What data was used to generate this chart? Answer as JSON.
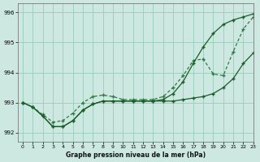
{
  "title": "Graphe pression niveau de la mer (hPa)",
  "xlim": [
    -0.5,
    23
  ],
  "ylim": [
    991.7,
    996.3
  ],
  "yticks": [
    992,
    993,
    994,
    995,
    996
  ],
  "xticks": [
    0,
    1,
    2,
    3,
    4,
    5,
    6,
    7,
    8,
    9,
    10,
    11,
    12,
    13,
    14,
    15,
    16,
    17,
    18,
    19,
    20,
    21,
    22,
    23
  ],
  "background_color": "#cce8e0",
  "grid_color": "#99ccbb",
  "line_color_solid": "#1a5c2a",
  "line_color_dot": "#2d7a44",
  "line1_x": [
    0,
    1,
    2,
    3,
    4,
    5,
    6,
    7,
    8,
    9,
    10,
    11,
    12,
    13,
    14,
    15,
    16,
    17,
    18,
    19,
    20,
    21,
    22,
    23
  ],
  "line1_y": [
    993.0,
    992.85,
    992.55,
    992.2,
    992.2,
    992.4,
    992.75,
    992.95,
    993.05,
    993.05,
    993.05,
    993.05,
    993.05,
    993.05,
    993.05,
    993.05,
    993.1,
    993.15,
    993.2,
    993.3,
    993.5,
    993.8,
    994.3,
    994.65
  ],
  "line2_x": [
    0,
    1,
    2,
    3,
    4,
    5,
    6,
    7,
    8,
    9,
    10,
    11,
    12,
    13,
    14,
    15,
    16,
    17,
    18,
    19,
    20,
    21,
    22,
    23
  ],
  "line2_y": [
    993.0,
    992.85,
    992.6,
    992.35,
    992.4,
    992.65,
    993.0,
    993.2,
    993.25,
    993.2,
    993.1,
    993.1,
    993.1,
    993.1,
    993.2,
    993.5,
    993.9,
    994.4,
    994.45,
    993.95,
    993.9,
    994.7,
    995.45,
    995.85
  ],
  "line3_x": [
    0,
    1,
    2,
    3,
    4,
    5,
    6,
    7,
    8,
    9,
    10,
    11,
    12,
    13,
    14,
    15,
    16,
    17,
    18,
    19,
    20,
    21,
    22,
    23
  ],
  "line3_y": [
    993.0,
    992.85,
    992.55,
    992.2,
    992.2,
    992.4,
    992.75,
    992.95,
    993.05,
    993.05,
    993.05,
    993.05,
    993.05,
    993.05,
    993.1,
    993.3,
    993.7,
    994.3,
    994.85,
    995.3,
    995.6,
    995.75,
    995.85,
    995.95
  ]
}
